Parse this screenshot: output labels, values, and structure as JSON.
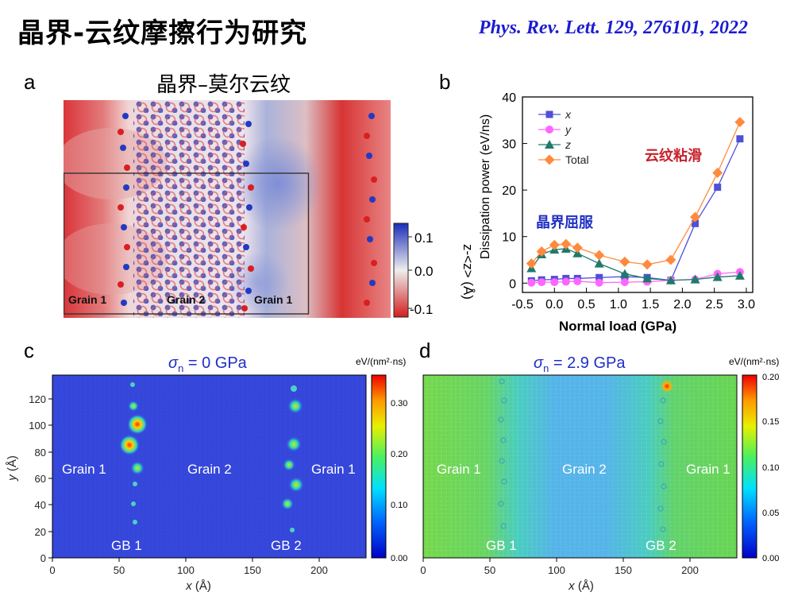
{
  "slide": {
    "title": "晶界-云纹摩擦行为研究",
    "citation": "Phys. Rev. Lett. 129, 276101, 2022"
  },
  "panel_a": {
    "label": "a",
    "title": "晶界–莫尔云纹",
    "grain_labels": [
      "Grain 1",
      "Grain 2",
      "Grain 1"
    ],
    "colorbar": {
      "ticks": [
        "0.1",
        "0.0",
        "-0.1"
      ],
      "label": "z-<z> (Å)"
    },
    "colors": {
      "high": "#1a2db8",
      "mid": "#e6e6e6",
      "low": "#d41e1e"
    }
  },
  "panel_b": {
    "label": "b",
    "annotation_red": "云纹粘滑",
    "annotation_blue": "晶界屈服"
  },
  "panel_c": {
    "label": "c",
    "title_sigma": "σ",
    "title_sub": "n",
    "title_rest": " = 0 GPa",
    "unit": "eV/(nm²·ns)",
    "colorbar_ticks": [
      "0.30",
      "0.20",
      "0.10",
      "0.00"
    ],
    "grain_labels": [
      "Grain 1",
      "Grain 2",
      "Grain 1"
    ],
    "gb_labels": [
      "GB 1",
      "GB 2"
    ],
    "xlabel_var": "x",
    "xlabel_unit": " (Å)",
    "ylabel_var": "y",
    "ylabel_unit": " (Å)",
    "xticks": [
      "0",
      "50",
      "100",
      "150",
      "200"
    ],
    "yticks": [
      "0",
      "20",
      "40",
      "60",
      "80",
      "100",
      "120"
    ]
  },
  "panel_d": {
    "label": "d",
    "title_sigma": "σ",
    "title_sub": "n",
    "title_rest": " = 2.9 GPa",
    "unit": "eV/(nm²·ns)",
    "colorbar_ticks": [
      "0.20",
      "0.15",
      "0.10",
      "0.05",
      "0.00"
    ],
    "grain_labels": [
      "Grain 1",
      "Grain 2",
      "Grain 1"
    ],
    "gb_labels": [
      "GB 1",
      "GB 2"
    ],
    "xlabel_var": "x",
    "xlabel_unit": " (Å)",
    "xticks": [
      "0",
      "50",
      "100",
      "150",
      "200"
    ]
  },
  "chart_data": {
    "type": "line",
    "x": [
      -0.36,
      -0.2,
      0.0,
      0.18,
      0.36,
      0.7,
      1.1,
      1.45,
      1.82,
      2.2,
      2.55,
      2.9
    ],
    "series": [
      {
        "name": "x",
        "color": "#4f4fd9",
        "marker": "square",
        "values": [
          0.5,
          0.7,
          0.8,
          1.0,
          1.0,
          1.2,
          1.4,
          1.2,
          0.6,
          12.8,
          20.6,
          31.0
        ]
      },
      {
        "name": "y",
        "color": "#ff66ff",
        "marker": "circle",
        "values": [
          0.1,
          0.2,
          0.2,
          0.3,
          0.4,
          0.1,
          0.2,
          0.3,
          0.6,
          0.8,
          2.0,
          2.4
        ]
      },
      {
        "name": "z",
        "color": "#1e7a6b",
        "marker": "triangle",
        "values": [
          3.2,
          6.2,
          7.2,
          7.4,
          6.4,
          4.2,
          2.0,
          1.0,
          0.6,
          0.8,
          1.3,
          1.6
        ]
      },
      {
        "name": "Total",
        "color": "#ff8a3d",
        "marker": "diamond",
        "values": [
          4.2,
          6.8,
          8.2,
          8.4,
          7.6,
          6.0,
          4.6,
          4.0,
          5.0,
          14.2,
          23.7,
          34.6
        ]
      }
    ],
    "xlabel": "Normal load (GPa)",
    "ylabel": "Dissipation power (eV/ns)",
    "xlim": [
      -0.5,
      3.1
    ],
    "ylim": [
      -2,
      40
    ],
    "xticks": [
      "-0.5",
      "0.0",
      "0.5",
      "1.0",
      "1.5",
      "2.0",
      "2.5",
      "3.0"
    ],
    "yticks": [
      "0",
      "10",
      "20",
      "30",
      "40"
    ],
    "grid": false,
    "legend_position": "top-left"
  }
}
